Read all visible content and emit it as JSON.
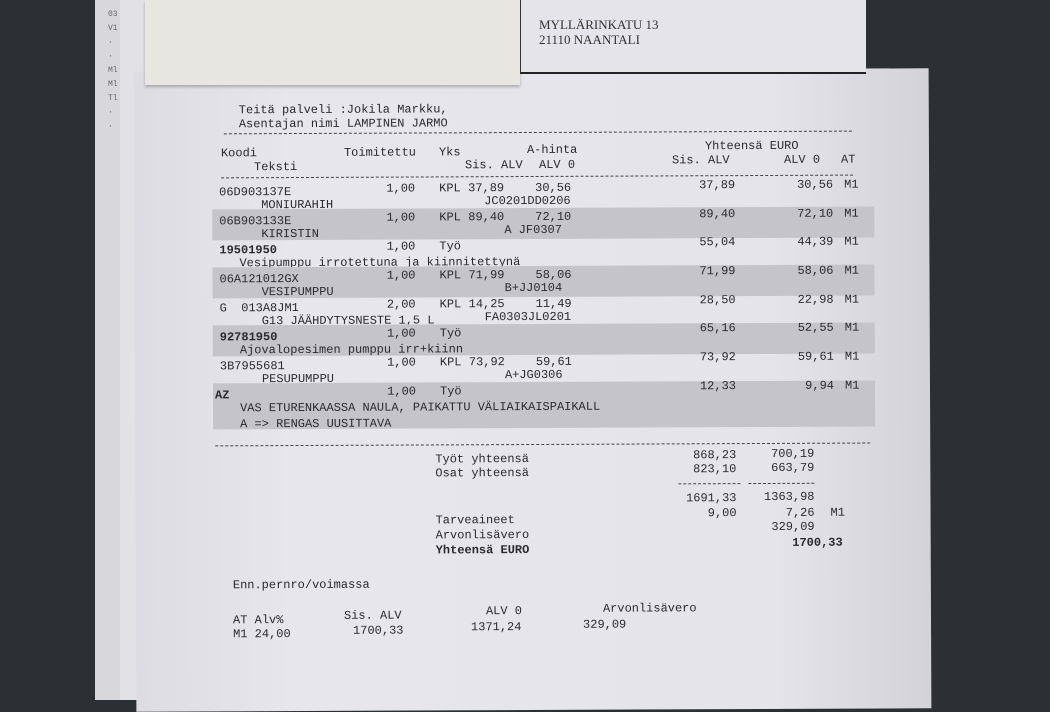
{
  "header": {
    "address_line1": "MYLLÄRINKATU 13",
    "address_line2": "21110 NAANTALI"
  },
  "intro": {
    "served_by": "Teitä palveli :Jokila Markku,",
    "mechanic": "Asentajan nimi LAMPINEN JARMO"
  },
  "columns": {
    "code": "Koodi",
    "text": "Teksti",
    "delivered": "Toimitettu",
    "unit": "Yks",
    "unit_price": "A-hinta",
    "unit_price_vat": "Sis. ALV",
    "unit_price_net": "ALV 0",
    "total": "Yhteensä EURO",
    "total_vat": "Sis. ALV",
    "total_net": "ALV 0",
    "at": "AT"
  },
  "items": [
    {
      "code": "06D903137E",
      "qty": "1,00",
      "unit": "KPL",
      "price_vat": "37,89",
      "price_net": "30,56",
      "total_vat": "37,89",
      "total_net": "30,56",
      "at": "M1",
      "text": "MONIURAHIH",
      "ref": "JC0201DD0206",
      "bold": false
    },
    {
      "code": "06B903133E",
      "qty": "1,00",
      "unit": "KPL",
      "price_vat": "89,40",
      "price_net": "72,10",
      "total_vat": "89,40",
      "total_net": "72,10",
      "at": "M1",
      "text": "KIRISTIN",
      "ref": "A JF0307",
      "bold": false
    },
    {
      "code": "19501950",
      "qty": "1,00",
      "unit": "Työ",
      "price_vat": "",
      "price_net": "",
      "total_vat": "55,04",
      "total_net": "44,39",
      "at": "M1",
      "text": "Vesipumppu irrotettuna ja kiinnitettynä",
      "ref": "",
      "bold": true
    },
    {
      "code": "06A121012GX",
      "qty": "1,00",
      "unit": "KPL",
      "price_vat": "71,99",
      "price_net": "58,06",
      "total_vat": "71,99",
      "total_net": "58,06",
      "at": "M1",
      "text": "VESIPUMPPU",
      "ref": "B+JJ0104",
      "bold": false
    },
    {
      "code": "G  013A8JM1",
      "qty": "2,00",
      "unit": "KPL",
      "price_vat": "14,25",
      "price_net": "11,49",
      "total_vat": "28,50",
      "total_net": "22,98",
      "at": "M1",
      "text": "G13 JÄÄHDYTYSNESTE 1,5 L",
      "ref": "FA0303JL0201",
      "bold": false
    },
    {
      "code": "92781950",
      "qty": "1,00",
      "unit": "Työ",
      "price_vat": "",
      "price_net": "",
      "total_vat": "65,16",
      "total_net": "52,55",
      "at": "M1",
      "text": "Ajovalopesimen pumppu irr+kiinn",
      "ref": "",
      "bold": true
    },
    {
      "code": "3B7955681",
      "qty": "1,00",
      "unit": "KPL",
      "price_vat": "73,92",
      "price_net": "59,61",
      "total_vat": "73,92",
      "total_net": "59,61",
      "at": "M1",
      "text": "PESUPUMPPU",
      "ref": "A+JG0306",
      "bold": false
    },
    {
      "code": "AZ",
      "qty": "1,00",
      "unit": "Työ",
      "price_vat": "",
      "price_net": "",
      "total_vat": "12,33",
      "total_net": "9,94",
      "at": "M1",
      "text": "VAS ETURENKAASSA NAULA, PAIKATTU VÄLIAIKAISPAIKALL",
      "text2": "A => RENGAS UUSITTAVA",
      "ref": "",
      "bold": true
    }
  ],
  "totals": {
    "labour_label": "Työt yhteensä",
    "labour_vat": "868,23",
    "labour_net": "700,19",
    "parts_label": "Osat yhteensä",
    "parts_vat": "823,10",
    "parts_net": "663,79",
    "subtotal_vat": "1691,33",
    "subtotal_net": "1363,98",
    "supplies_label": "Tarveaineet",
    "supplies_vat": "9,00",
    "supplies_net": "7,26",
    "supplies_at": "M1",
    "vat_label": "Arvonlisävero",
    "vat_amount": "329,09",
    "grand_label": "Yhteensä EURO",
    "grand_total": "1700,33"
  },
  "footer": {
    "note": "Enn.pernro/voimassa",
    "vat_table": {
      "h_at": "AT Alv%",
      "h_vat": "Sis. ALV",
      "h_net": "ALV 0",
      "h_tax": "Arvonlisävero",
      "at_rate": "M1 24,00",
      "vat": "1700,33",
      "net": "1371,24",
      "tax": "329,09"
    }
  }
}
